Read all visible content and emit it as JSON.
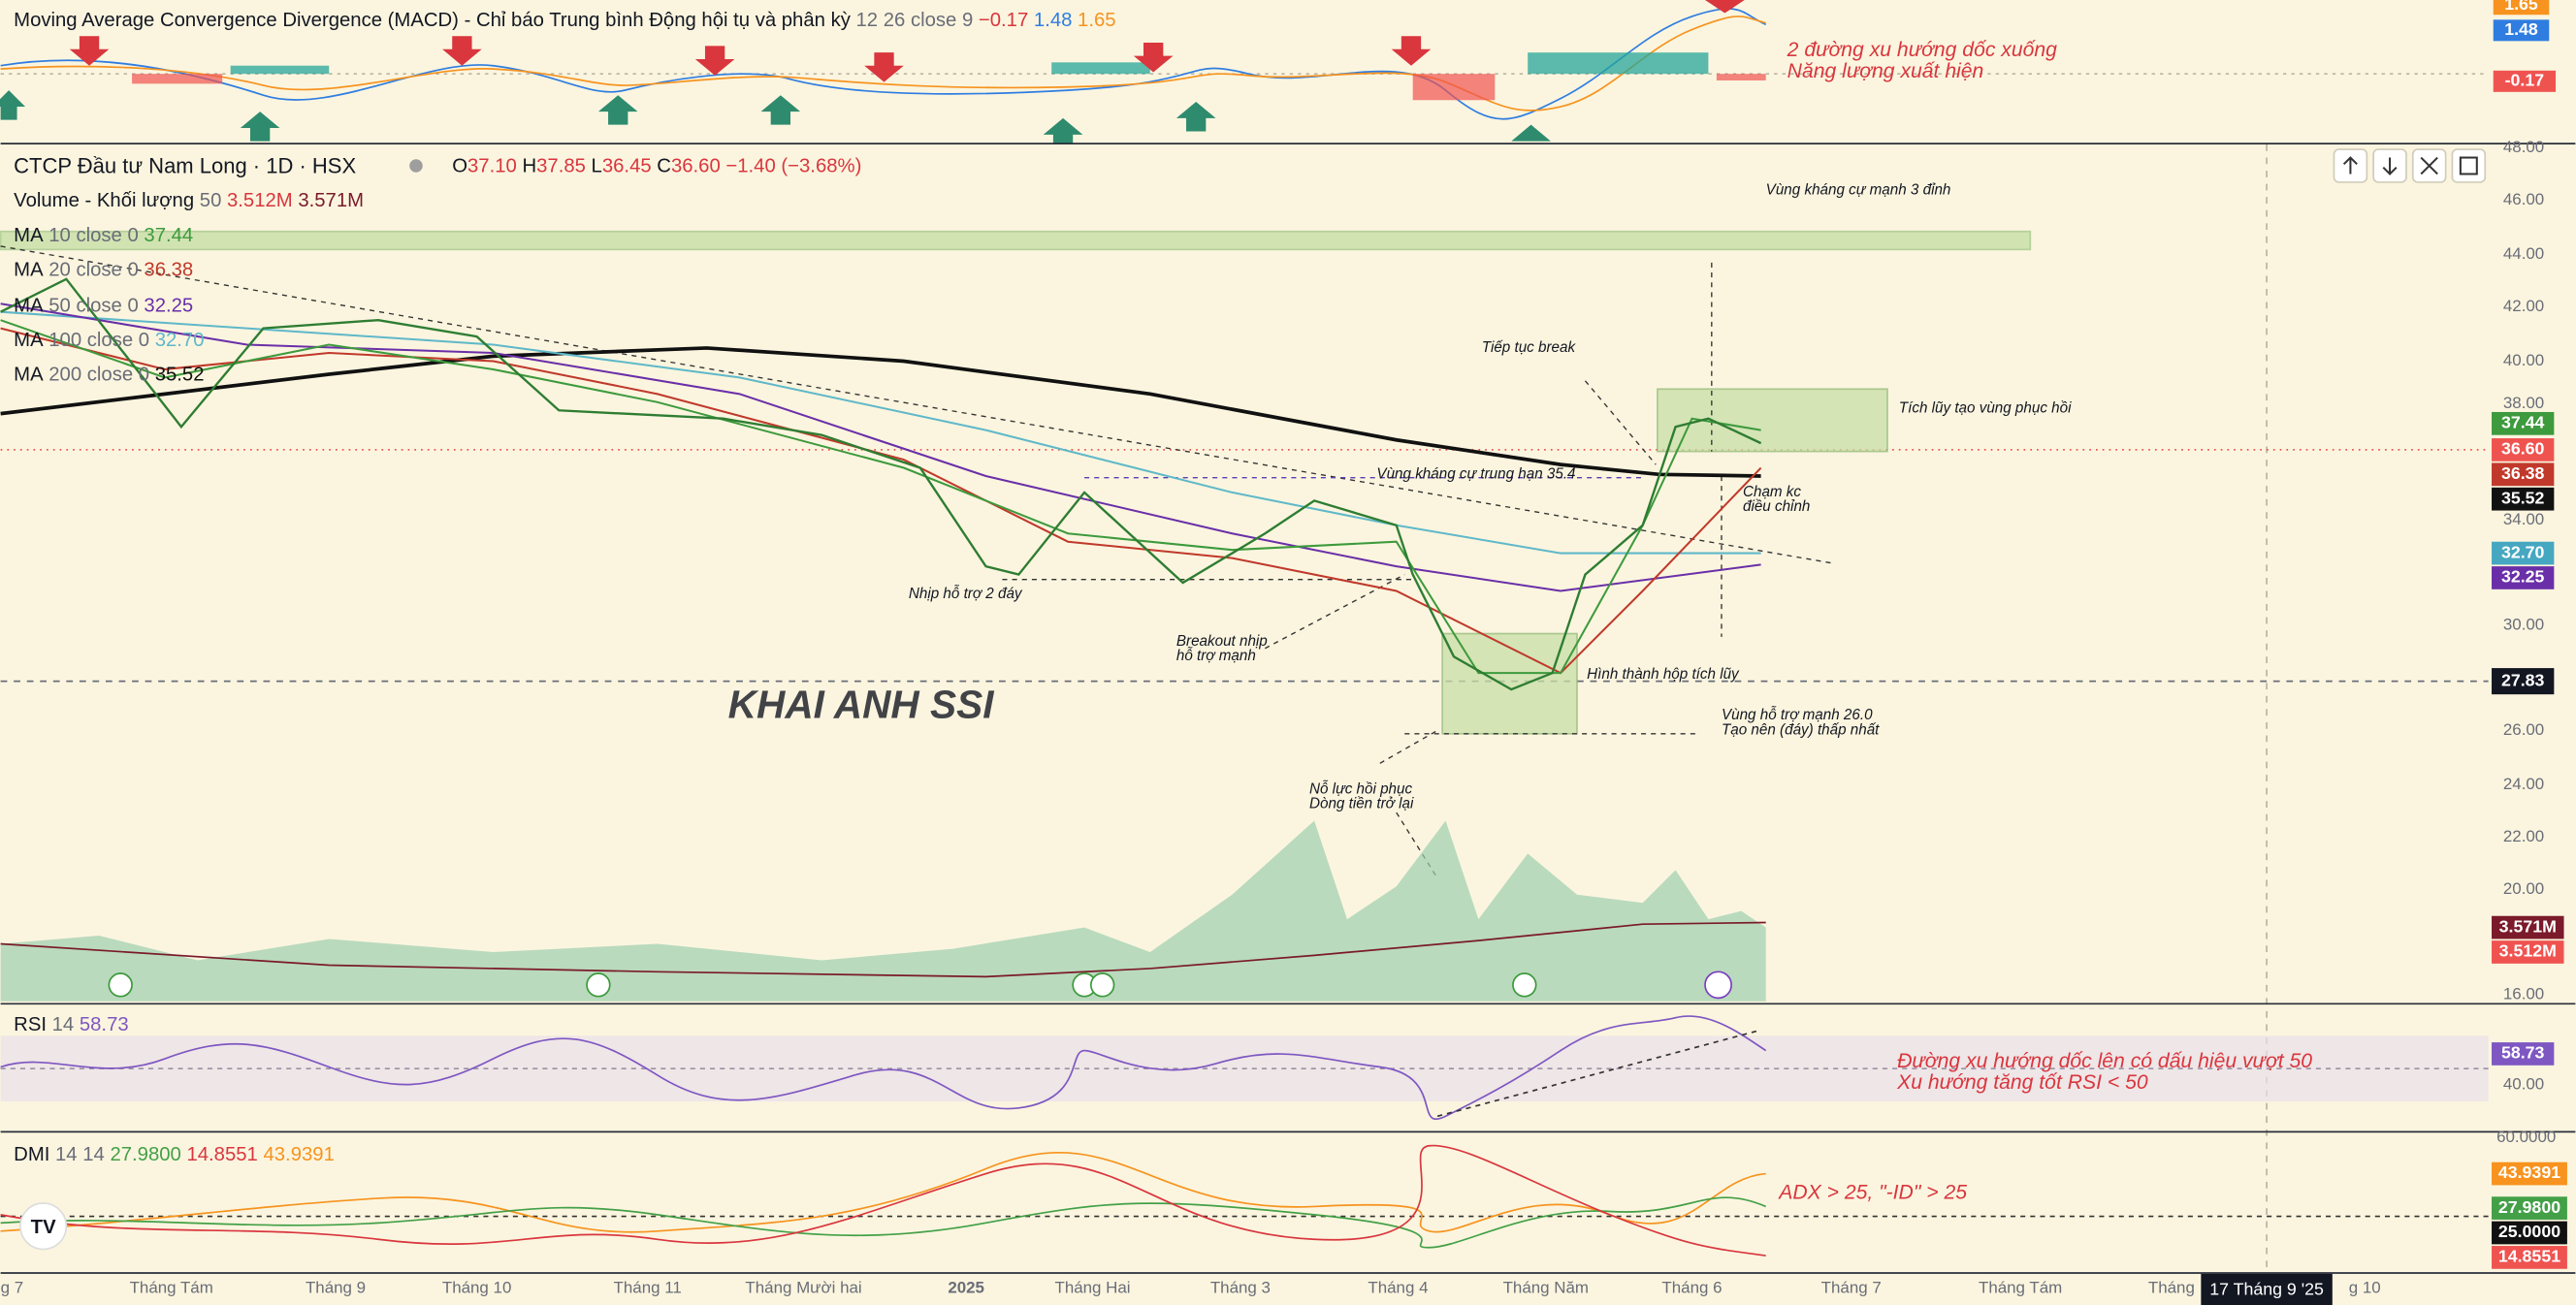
{
  "macd": {
    "title": "Moving Average Convergence Divergence (MACD) - Chỉ báo Trung bình Động hội tụ và phân kỳ",
    "params": "12 26 close 9",
    "values": [
      "−0.17",
      "1.48",
      "1.65"
    ],
    "axis_badges": [
      "1.65",
      "1.48",
      "-0.17"
    ],
    "note": [
      "2 đường xu hướng dốc xuống",
      "Năng lượng xuất hiện"
    ]
  },
  "main": {
    "symbol": "CTCP Đầu tư Nam Long · 1D · HSX",
    "ohlc": [
      {
        "key": "O",
        "value": "37.10"
      },
      {
        "key": "H",
        "value": "37.85"
      },
      {
        "key": "L",
        "value": "36.45"
      },
      {
        "key": "C",
        "value": "36.60"
      }
    ],
    "change": "−1.40 (−3.68%)",
    "indicators": [
      {
        "name": "Volume - Khối lượng",
        "params": "50",
        "values": [
          "3.512M",
          "3.571M"
        ]
      },
      {
        "name": "MA",
        "params": "10 close 0",
        "values": [
          "37.44"
        ]
      },
      {
        "name": "MA",
        "params": "20 close 0",
        "values": [
          "36.38"
        ]
      },
      {
        "name": "MA",
        "params": "50 close 0",
        "values": [
          "32.25"
        ]
      },
      {
        "name": "MA",
        "params": "100 close 0",
        "values": [
          "32.70"
        ]
      },
      {
        "name": "MA",
        "params": "200 close 0",
        "values": [
          "35.52"
        ]
      }
    ],
    "price_axis": [
      "48.00",
      "46.00",
      "44.00",
      "42.00",
      "40.00",
      "38.00",
      "34.00",
      "30.00",
      "26.00",
      "24.00",
      "22.00",
      "20.00",
      "16.00"
    ],
    "price_badges": [
      "37.44",
      "36.60",
      "36.38",
      "35.52",
      "32.70",
      "32.25",
      "27.83",
      "3.571M",
      "3.512M"
    ],
    "watermark": "KHAI ANH SSI",
    "annotations": {
      "resistance_3_tops": "Vùng kháng cự mạnh 3 đỉnh",
      "continue_break": "Tiếp tục break",
      "accumulation": "Tích lũy tạo vùng phục hồi",
      "mid_resistance": "Vùng kháng cự trung hạn 35.4",
      "touch": [
        "Chạm kc",
        "điều chỉnh"
      ],
      "double_bottom": "Nhịp hỗ trợ 2 đáy",
      "breakout": [
        "Breakout nhịp",
        "hỗ trợ mạnh"
      ],
      "box": "Hình thành hộp tích lũy",
      "support": [
        "Vùng hỗ trợ mạnh 26.0",
        "Tạo nên (đáy) thấp nhất"
      ],
      "recovery": [
        "Nỗ lực hồi phục",
        "Dòng tiền trở lại"
      ]
    }
  },
  "rsi": {
    "title": "RSI",
    "params": "14",
    "value": "58.73",
    "axis": [
      "40.00"
    ],
    "badge": "58.73",
    "note": [
      "Đường xu hướng dốc lên có dấu hiệu vượt 50",
      "Xu hướng tăng tốt RSI < 50"
    ]
  },
  "dmi": {
    "title": "DMI",
    "params": "14 14",
    "values": [
      "27.9800",
      "14.8551",
      "43.9391"
    ],
    "axis": [
      "60.0000"
    ],
    "badges": [
      "43.9391",
      "27.9800",
      "25.0000",
      "14.8551"
    ],
    "note": "ADX > 25, \"-ID\" > 25"
  },
  "time_axis": [
    "g 7",
    "Tháng Tám",
    "Tháng 9",
    "Tháng 10",
    "Tháng 11",
    "Tháng Mười hai",
    "2025",
    "Tháng Hai",
    "Tháng 3",
    "Tháng 4",
    "Tháng Năm",
    "Tháng 6",
    "Tháng 7",
    "Tháng Tám",
    "Tháng",
    "g 10"
  ],
  "crosshair_date": "17 Tháng 9 '25"
}
